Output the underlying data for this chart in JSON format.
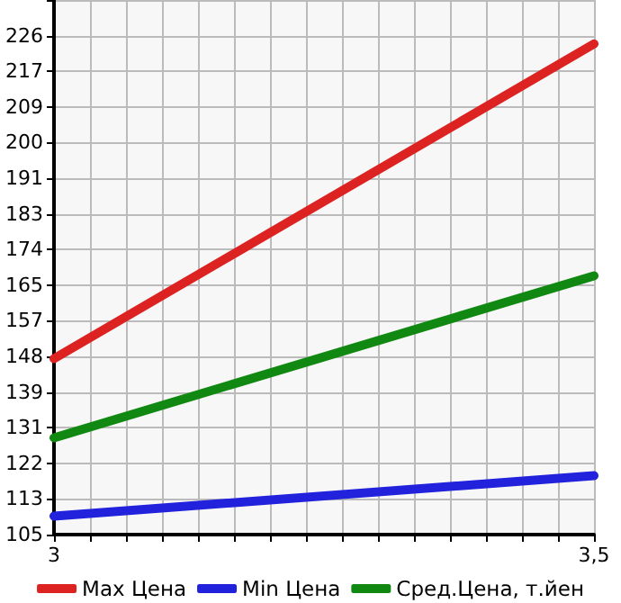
{
  "chart_data": {
    "type": "line",
    "x": [
      3,
      3.5
    ],
    "series": [
      {
        "name": "Max Цена",
        "color": "#dd2222",
        "values": [
          147.5,
          223.9
        ]
      },
      {
        "name": "Min Цена",
        "color": "#2222dd",
        "values": [
          109.3,
          119.1
        ]
      },
      {
        "name": "Сред.Цена, т.йен",
        "color": "#118811",
        "values": [
          128.3,
          167.6
        ]
      }
    ],
    "xlim": [
      3,
      3.5
    ],
    "xticks": [
      {
        "value": 3,
        "label": "3"
      },
      {
        "value": 3.0333,
        "label": null
      },
      {
        "value": 3.0667,
        "label": null
      },
      {
        "value": 3.1,
        "label": null
      },
      {
        "value": 3.1333,
        "label": null
      },
      {
        "value": 3.1667,
        "label": null
      },
      {
        "value": 3.2,
        "label": null
      },
      {
        "value": 3.2333,
        "label": null
      },
      {
        "value": 3.2667,
        "label": null
      },
      {
        "value": 3.3,
        "label": null
      },
      {
        "value": 3.3333,
        "label": null
      },
      {
        "value": 3.3667,
        "label": null
      },
      {
        "value": 3.4,
        "label": null
      },
      {
        "value": 3.4333,
        "label": null
      },
      {
        "value": 3.4667,
        "label": null
      },
      {
        "value": 3.5,
        "label": "3,5"
      }
    ],
    "ylim": [
      104.8,
      234.55
    ],
    "yticks": [
      {
        "value": 104.8,
        "label": "105"
      },
      {
        "value": 113.45,
        "label": "113"
      },
      {
        "value": 122.1,
        "label": "122"
      },
      {
        "value": 130.75,
        "label": "131"
      },
      {
        "value": 139.4,
        "label": "139"
      },
      {
        "value": 148.05,
        "label": "148"
      },
      {
        "value": 156.7,
        "label": "157"
      },
      {
        "value": 165.35,
        "label": "165"
      },
      {
        "value": 174,
        "label": "174"
      },
      {
        "value": 182.65,
        "label": "183"
      },
      {
        "value": 191.3,
        "label": "191"
      },
      {
        "value": 199.95,
        "label": "200"
      },
      {
        "value": 208.6,
        "label": "209"
      },
      {
        "value": 217.25,
        "label": "217"
      },
      {
        "value": 225.9,
        "label": "226"
      },
      {
        "value": 234.55,
        "label": null
      }
    ],
    "grid": true,
    "legend": "bottom",
    "marker": "none",
    "line_style": "solid"
  }
}
